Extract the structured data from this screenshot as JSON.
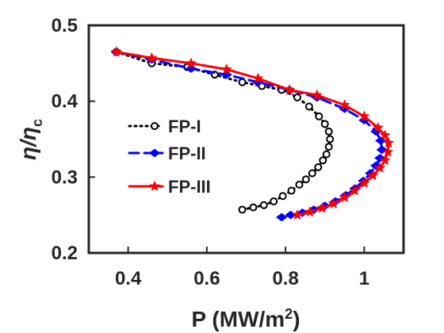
{
  "colors": {
    "axis": "#262626",
    "background": "#ffffff"
  },
  "chart_data": {
    "type": "line",
    "title": "",
    "xlabel": "P (MW/m",
    "xlabel_superscript": "2",
    "xlabel_suffix": ")",
    "ylabel": "η/η",
    "ylabel_subscript": "c",
    "xlim": [
      0.3,
      1.1
    ],
    "ylim": [
      0.2,
      0.5
    ],
    "xticks": [
      0.4,
      0.6,
      0.8,
      1.0
    ],
    "xtick_labels": [
      "0.4",
      "0.6",
      "0.8",
      "1"
    ],
    "yticks": [
      0.2,
      0.3,
      0.4,
      0.5
    ],
    "ytick_labels": [
      "0.2",
      "0.3",
      "0.4",
      "0.5"
    ],
    "grid": false,
    "legend_position": "left",
    "series": [
      {
        "name": "FP-I",
        "color": "#000000",
        "line_style": "dotted",
        "marker": "circle",
        "x": [
          0.37,
          0.46,
          0.55,
          0.62,
          0.69,
          0.74,
          0.79,
          0.83,
          0.86,
          0.885,
          0.9,
          0.91,
          0.913,
          0.91,
          0.904,
          0.895,
          0.883,
          0.868,
          0.852,
          0.835,
          0.815,
          0.793,
          0.77,
          0.745,
          0.718,
          0.69
        ],
        "y": [
          0.465,
          0.45,
          0.445,
          0.435,
          0.425,
          0.42,
          0.415,
          0.405,
          0.393,
          0.38,
          0.37,
          0.36,
          0.35,
          0.34,
          0.33,
          0.322,
          0.313,
          0.305,
          0.297,
          0.29,
          0.282,
          0.275,
          0.268,
          0.263,
          0.26,
          0.257
        ]
      },
      {
        "name": "FP-II",
        "color": "#0000ff",
        "line_style": "dashed",
        "marker": "diamond",
        "x": [
          0.37,
          0.46,
          0.56,
          0.65,
          0.73,
          0.81,
          0.88,
          0.95,
          1.0,
          1.03,
          1.042,
          1.045,
          1.04,
          1.03,
          1.016,
          0.998,
          0.977,
          0.953,
          0.927,
          0.9,
          0.872,
          0.843,
          0.813,
          0.79
        ],
        "y": [
          0.465,
          0.455,
          0.443,
          0.435,
          0.425,
          0.415,
          0.405,
          0.39,
          0.375,
          0.36,
          0.348,
          0.336,
          0.325,
          0.315,
          0.305,
          0.295,
          0.285,
          0.276,
          0.268,
          0.262,
          0.257,
          0.253,
          0.25,
          0.247
        ]
      },
      {
        "name": "FP-III",
        "color": "#ff0000",
        "line_style": "solid",
        "marker": "star",
        "x": [
          0.37,
          0.46,
          0.56,
          0.65,
          0.73,
          0.81,
          0.88,
          0.95,
          1.0,
          1.035,
          1.053,
          1.062,
          1.06,
          1.053,
          1.04,
          1.022,
          1.0,
          0.976,
          0.95,
          0.922,
          0.893,
          0.862,
          0.83
        ],
        "y": [
          0.465,
          0.457,
          0.45,
          0.442,
          0.43,
          0.415,
          0.408,
          0.395,
          0.38,
          0.365,
          0.355,
          0.345,
          0.333,
          0.322,
          0.312,
          0.302,
          0.292,
          0.282,
          0.273,
          0.265,
          0.259,
          0.254,
          0.25
        ]
      }
    ]
  }
}
